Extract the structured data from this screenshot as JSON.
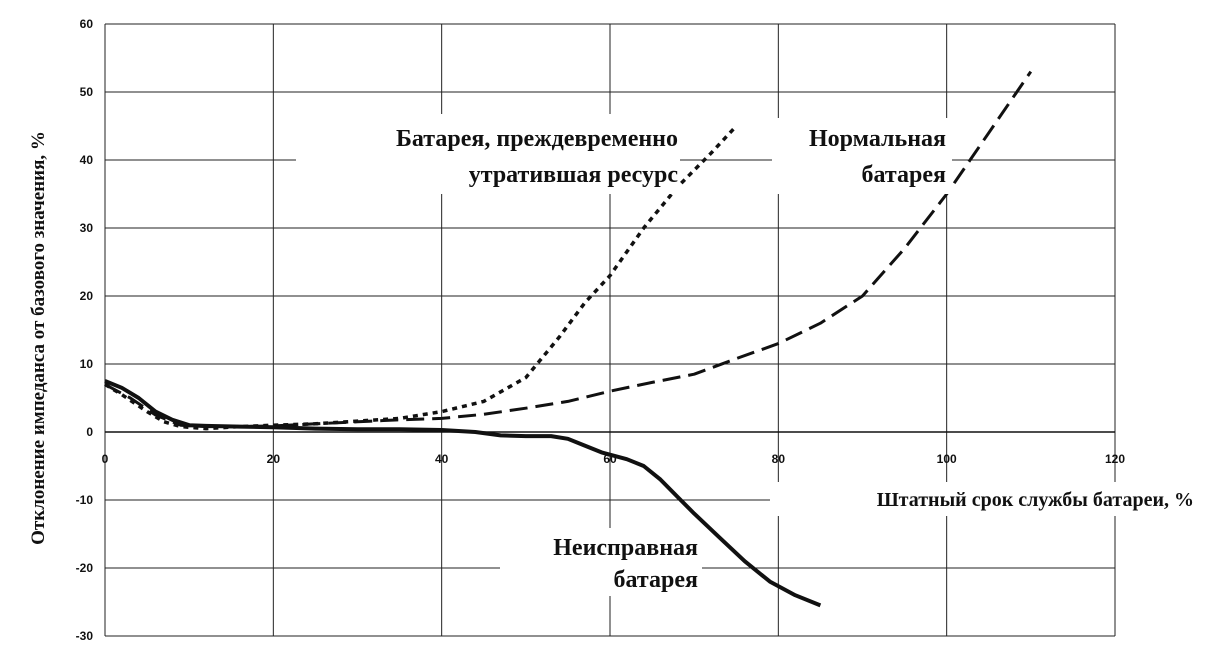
{
  "chart_data": {
    "type": "line",
    "title": "",
    "xlabel": "Штатный срок службы батареи, %",
    "ylabel": "Отклонение импеданса от базового значения, %",
    "xlim": [
      0,
      120
    ],
    "ylim": [
      -30,
      60
    ],
    "x_ticks": [
      0,
      20,
      40,
      60,
      80,
      100,
      120
    ],
    "y_ticks": [
      -30,
      -20,
      -10,
      0,
      10,
      20,
      30,
      40,
      50,
      60
    ],
    "grid": true,
    "series": [
      {
        "name": "Батарея, преждевременно утратившая ресурс",
        "style": "dotted",
        "color": "#111111",
        "points": [
          [
            0,
            7
          ],
          [
            2,
            5.5
          ],
          [
            5,
            3
          ],
          [
            7,
            1.5
          ],
          [
            9,
            0.8
          ],
          [
            12,
            0.5
          ],
          [
            16,
            0.8
          ],
          [
            20,
            1
          ],
          [
            25,
            1.2
          ],
          [
            30,
            1.6
          ],
          [
            35,
            2
          ],
          [
            40,
            3
          ],
          [
            45,
            4.5
          ],
          [
            50,
            8
          ],
          [
            54,
            14
          ],
          [
            57,
            19
          ],
          [
            60,
            23
          ],
          [
            64,
            30
          ],
          [
            68,
            36
          ],
          [
            72,
            41
          ],
          [
            75,
            45
          ]
        ]
      },
      {
        "name": "Нормальная батарея",
        "style": "dashed",
        "color": "#111111",
        "points": [
          [
            0,
            7
          ],
          [
            3,
            5
          ],
          [
            6,
            2.5
          ],
          [
            9,
            1
          ],
          [
            12,
            0.8
          ],
          [
            16,
            0.8
          ],
          [
            20,
            0.9
          ],
          [
            25,
            1.2
          ],
          [
            30,
            1.5
          ],
          [
            35,
            1.8
          ],
          [
            40,
            2
          ],
          [
            45,
            2.6
          ],
          [
            50,
            3.5
          ],
          [
            55,
            4.5
          ],
          [
            60,
            6
          ],
          [
            65,
            7.3
          ],
          [
            70,
            8.5
          ],
          [
            75,
            10.8
          ],
          [
            80,
            13
          ],
          [
            85,
            16
          ],
          [
            90,
            20
          ],
          [
            95,
            27
          ],
          [
            100,
            35
          ],
          [
            105,
            44
          ],
          [
            110,
            53
          ]
        ]
      },
      {
        "name": "Неисправная батарея",
        "style": "solid",
        "color": "#111111",
        "points": [
          [
            0,
            7.5
          ],
          [
            2,
            6.5
          ],
          [
            4,
            5
          ],
          [
            6,
            3
          ],
          [
            8,
            1.8
          ],
          [
            10,
            1
          ],
          [
            12,
            0.9
          ],
          [
            16,
            0.8
          ],
          [
            20,
            0.7
          ],
          [
            25,
            0.5
          ],
          [
            30,
            0.4
          ],
          [
            35,
            0.4
          ],
          [
            40,
            0.3
          ],
          [
            44,
            0
          ],
          [
            47,
            -0.5
          ],
          [
            50,
            -0.6
          ],
          [
            53,
            -0.6
          ],
          [
            55,
            -1
          ],
          [
            57,
            -2
          ],
          [
            59,
            -3
          ],
          [
            62,
            -4
          ],
          [
            64,
            -5
          ],
          [
            66,
            -7
          ],
          [
            68,
            -9.5
          ],
          [
            70,
            -12
          ],
          [
            73,
            -15.5
          ],
          [
            76,
            -19
          ],
          [
            79,
            -22
          ],
          [
            82,
            -24
          ],
          [
            85,
            -25.5
          ]
        ]
      }
    ],
    "annotations": [
      {
        "text": "Батарея, преждевременно",
        "series": 0
      },
      {
        "text": "утратившая ресурс",
        "series": 0
      },
      {
        "text": "Нормальная",
        "series": 1
      },
      {
        "text": "батарея",
        "series": 1
      },
      {
        "text": "Неисправная",
        "series": 2
      },
      {
        "text": "батарея",
        "series": 2
      }
    ]
  }
}
